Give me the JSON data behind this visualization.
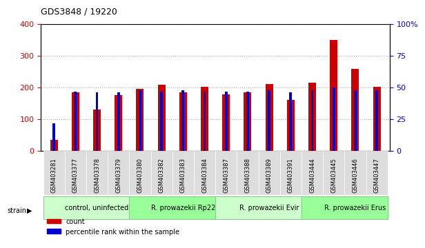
{
  "title": "GDS3848 / 19220",
  "samples": [
    "GSM403281",
    "GSM403377",
    "GSM403378",
    "GSM403379",
    "GSM403380",
    "GSM403382",
    "GSM403383",
    "GSM403384",
    "GSM403387",
    "GSM403388",
    "GSM403389",
    "GSM403391",
    "GSM403444",
    "GSM403445",
    "GSM403446",
    "GSM403447"
  ],
  "count": [
    35,
    185,
    130,
    175,
    195,
    208,
    185,
    202,
    178,
    185,
    210,
    160,
    215,
    350,
    258,
    202
  ],
  "percentile": [
    22,
    47,
    46,
    46,
    48,
    47,
    48,
    47,
    47,
    47,
    48,
    46,
    48,
    50,
    48,
    48
  ],
  "bar_color_count": "#cc0000",
  "bar_color_pct": "#0000cc",
  "groups": [
    {
      "label": "control, uninfected",
      "start": 0,
      "end": 4,
      "color": "#ccffcc"
    },
    {
      "label": "R. prowazekii Rp22",
      "start": 4,
      "end": 8,
      "color": "#99ff99"
    },
    {
      "label": "R. prowazekii Evir",
      "start": 8,
      "end": 12,
      "color": "#ccffcc"
    },
    {
      "label": "R. prowazekii Erus",
      "start": 12,
      "end": 16,
      "color": "#99ff99"
    }
  ],
  "ylim_left": [
    0,
    400
  ],
  "ylim_right": [
    0,
    100
  ],
  "yticks_left": [
    0,
    100,
    200,
    300,
    400
  ],
  "yticks_right": [
    0,
    25,
    50,
    75,
    100
  ],
  "grid_color": "#aaaaaa",
  "background_plot": "#ffffff",
  "background_label": "#dddddd",
  "bar_width": 0.35,
  "pct_bar_width": 0.12
}
